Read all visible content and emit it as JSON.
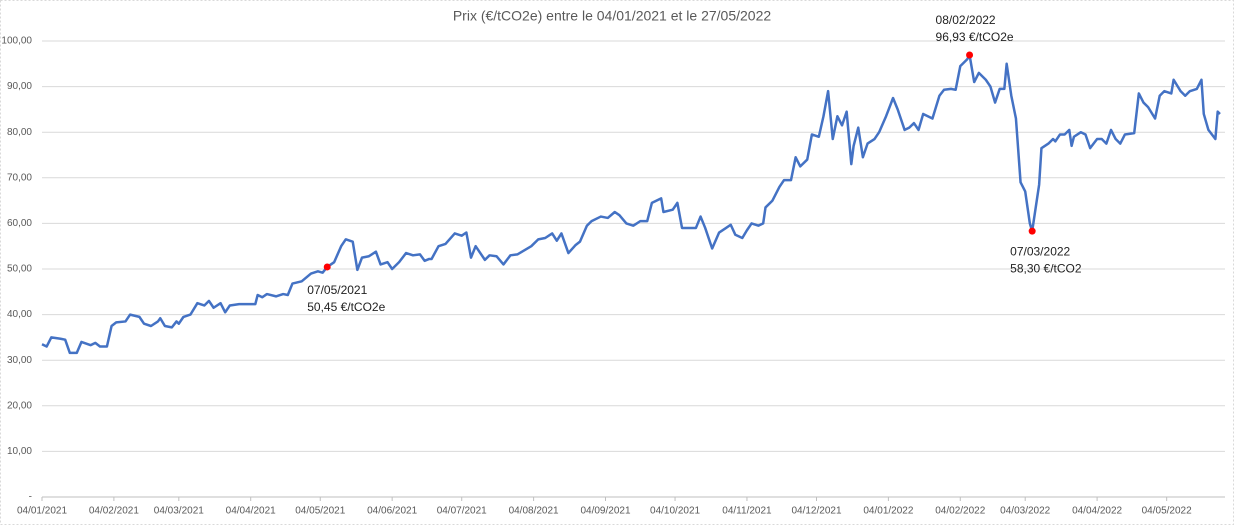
{
  "chart_data": {
    "type": "line",
    "title": "Prix (€/tCO2e) entre le 04/01/2021 et le 27/05/2022",
    "x": [
      "2021-01-04",
      "2021-01-06",
      "2021-01-08",
      "2021-01-12",
      "2021-01-14",
      "2021-01-16",
      "2021-01-19",
      "2021-01-21",
      "2021-01-25",
      "2021-01-27",
      "2021-01-29",
      "2021-02-01",
      "2021-02-03",
      "2021-02-05",
      "2021-02-09",
      "2021-02-11",
      "2021-02-15",
      "2021-02-17",
      "2021-02-20",
      "2021-02-23",
      "2021-02-24",
      "2021-02-26",
      "2021-03-01",
      "2021-03-03",
      "2021-03-04",
      "2021-03-06",
      "2021-03-09",
      "2021-03-12",
      "2021-03-15",
      "2021-03-17",
      "2021-03-19",
      "2021-03-22",
      "2021-03-24",
      "2021-03-26",
      "2021-03-30",
      "2021-04-06",
      "2021-04-07",
      "2021-04-09",
      "2021-04-11",
      "2021-04-15",
      "2021-04-18",
      "2021-04-20",
      "2021-04-22",
      "2021-04-26",
      "2021-04-30",
      "2021-05-03",
      "2021-05-05",
      "2021-05-07",
      "2021-05-10",
      "2021-05-13",
      "2021-05-15",
      "2021-05-18",
      "2021-05-20",
      "2021-05-22",
      "2021-05-25",
      "2021-05-28",
      "2021-05-30",
      "2021-06-02",
      "2021-06-04",
      "2021-06-07",
      "2021-06-10",
      "2021-06-13",
      "2021-06-16",
      "2021-06-18",
      "2021-06-20",
      "2021-06-21",
      "2021-06-24",
      "2021-06-27",
      "2021-07-01",
      "2021-07-04",
      "2021-07-06",
      "2021-07-08",
      "2021-07-10",
      "2021-07-14",
      "2021-07-16",
      "2021-07-19",
      "2021-07-22",
      "2021-07-25",
      "2021-07-28",
      "2021-07-30",
      "2021-08-03",
      "2021-08-06",
      "2021-08-09",
      "2021-08-12",
      "2021-08-14",
      "2021-08-16",
      "2021-08-19",
      "2021-08-22",
      "2021-08-24",
      "2021-08-27",
      "2021-08-29",
      "2021-09-02",
      "2021-09-05",
      "2021-09-08",
      "2021-09-10",
      "2021-09-13",
      "2021-09-16",
      "2021-09-19",
      "2021-09-22",
      "2021-09-24",
      "2021-09-28",
      "2021-09-29",
      "2021-10-03",
      "2021-10-05",
      "2021-10-07",
      "2021-10-11",
      "2021-10-13",
      "2021-10-15",
      "2021-10-17",
      "2021-10-20",
      "2021-10-23",
      "2021-10-26",
      "2021-10-28",
      "2021-10-30",
      "2021-11-02",
      "2021-11-04",
      "2021-11-06",
      "2021-11-09",
      "2021-11-11",
      "2021-11-12",
      "2021-11-15",
      "2021-11-18",
      "2021-11-20",
      "2021-11-23",
      "2021-11-25",
      "2021-11-27",
      "2021-11-30",
      "2021-12-02",
      "2021-12-05",
      "2021-12-07",
      "2021-12-09",
      "2021-12-11",
      "2021-12-13",
      "2021-12-15",
      "2021-12-17",
      "2021-12-19",
      "2021-12-20",
      "2021-12-22",
      "2021-12-24",
      "2021-12-26",
      "2021-12-29",
      "2021-12-31",
      "2022-01-03",
      "2022-01-06",
      "2022-01-08",
      "2022-01-11",
      "2022-01-13",
      "2022-01-15",
      "2022-01-17",
      "2022-01-19",
      "2022-01-23",
      "2022-01-26",
      "2022-01-28",
      "2022-01-31",
      "2022-02-02",
      "2022-02-04",
      "2022-02-07",
      "2022-02-08",
      "2022-02-10",
      "2022-02-12",
      "2022-02-15",
      "2022-02-17",
      "2022-02-19",
      "2022-02-21",
      "2022-02-23",
      "2022-02-24",
      "2022-02-26",
      "2022-02-28",
      "2022-03-02",
      "2022-03-04",
      "2022-03-06",
      "2022-03-07",
      "2022-03-10",
      "2022-03-11",
      "2022-03-14",
      "2022-03-16",
      "2022-03-17",
      "2022-03-19",
      "2022-03-21",
      "2022-03-23",
      "2022-03-24",
      "2022-03-25",
      "2022-03-28",
      "2022-03-30",
      "2022-04-01",
      "2022-04-04",
      "2022-04-06",
      "2022-04-08",
      "2022-04-10",
      "2022-04-12",
      "2022-04-14",
      "2022-04-16",
      "2022-04-20",
      "2022-04-22",
      "2022-04-24",
      "2022-04-26",
      "2022-04-29",
      "2022-05-01",
      "2022-05-03",
      "2022-05-06",
      "2022-05-07",
      "2022-05-10",
      "2022-05-12",
      "2022-05-14",
      "2022-05-17",
      "2022-05-19",
      "2022-05-20",
      "2022-05-22",
      "2022-05-25",
      "2022-05-26",
      "2022-05-27"
    ],
    "series": [
      {
        "color": "#4472c4",
        "values": [
          33.5,
          33,
          35,
          34.7,
          34.5,
          31.6,
          31.6,
          34,
          33.3,
          33.8,
          33,
          33,
          37.5,
          38.3,
          38.5,
          40,
          39.5,
          38,
          37.5,
          38.5,
          39.2,
          37.5,
          37.2,
          38.5,
          38,
          39.5,
          40,
          42.5,
          42,
          43,
          41.5,
          42.5,
          40.5,
          42,
          42.3,
          42.3,
          44.3,
          43.8,
          44.5,
          44,
          44.5,
          44.3,
          46.8,
          47.3,
          49,
          49.5,
          49.2,
          50.45,
          51.5,
          55,
          56.5,
          56,
          49.8,
          52.5,
          52.8,
          53.8,
          51,
          51.5,
          50,
          51.5,
          53.5,
          53,
          53.2,
          51.8,
          52.2,
          52.2,
          55,
          55.5,
          57.8,
          57.3,
          58,
          52.5,
          55,
          52,
          53,
          52.8,
          51,
          53,
          53.2,
          53.8,
          55,
          56.5,
          56.8,
          57.8,
          56.2,
          57.8,
          53.5,
          55.2,
          56,
          59.5,
          60.5,
          61.5,
          61.2,
          62.5,
          61.8,
          60,
          59.5,
          60.5,
          60.5,
          64.5,
          65.5,
          62.5,
          63,
          64.5,
          59,
          59,
          59,
          61.5,
          59,
          54.5,
          58,
          59,
          59.7,
          57.5,
          56.8,
          58.5,
          60,
          59.5,
          60,
          63.5,
          65,
          68,
          69.5,
          69.5,
          74.5,
          72.5,
          74,
          79.5,
          79,
          83.5,
          89,
          78.5,
          83.5,
          81.5,
          84.5,
          73,
          77,
          81,
          74.5,
          77.5,
          78.5,
          80,
          83.5,
          87.5,
          85,
          80.5,
          81,
          82,
          80.5,
          84,
          83,
          88,
          89.3,
          89.5,
          89.3,
          94.5,
          96,
          96.93,
          91,
          93,
          91.5,
          90,
          86.5,
          89.5,
          89.5,
          95,
          88,
          83,
          69,
          67,
          60,
          58.3,
          68.5,
          76.5,
          77.5,
          78.5,
          78,
          79.5,
          79.5,
          80.5,
          77,
          79,
          80,
          79.5,
          76.5,
          78.5,
          78.5,
          77.5,
          80.5,
          78.5,
          77.5,
          79.5,
          79.8,
          88.5,
          86.5,
          85.5,
          83,
          88,
          89,
          88.5,
          91.5,
          89,
          88,
          89,
          89.5,
          91.5,
          84,
          80.5,
          78.5,
          84.5,
          84
        ]
      }
    ],
    "xlim": [
      "2021-01-04",
      "2022-05-27"
    ],
    "xticks": [
      {
        "value": "2021-01-04",
        "label": "04/01/2021"
      },
      {
        "value": "2021-02-04",
        "label": "04/02/2021"
      },
      {
        "value": "2021-03-04",
        "label": "04/03/2021"
      },
      {
        "value": "2021-04-04",
        "label": "04/04/2021"
      },
      {
        "value": "2021-05-04",
        "label": "04/05/2021"
      },
      {
        "value": "2021-06-04",
        "label": "04/06/2021"
      },
      {
        "value": "2021-07-04",
        "label": "04/07/2021"
      },
      {
        "value": "2021-08-04",
        "label": "04/08/2021"
      },
      {
        "value": "2021-09-04",
        "label": "04/09/2021"
      },
      {
        "value": "2021-10-04",
        "label": "04/10/2021"
      },
      {
        "value": "2021-11-04",
        "label": "04/11/2021"
      },
      {
        "value": "2021-12-04",
        "label": "04/12/2021"
      },
      {
        "value": "2022-01-04",
        "label": "04/01/2022"
      },
      {
        "value": "2022-02-04",
        "label": "04/02/2022"
      },
      {
        "value": "2022-03-04",
        "label": "04/03/2022"
      },
      {
        "value": "2022-04-04",
        "label": "04/04/2022"
      },
      {
        "value": "2022-05-04",
        "label": "04/05/2022"
      }
    ],
    "ylim": [
      0,
      100
    ],
    "yticks": [
      {
        "value": 0,
        "label": "-"
      },
      {
        "value": 10,
        "label": "10,00"
      },
      {
        "value": 20,
        "label": "20,00"
      },
      {
        "value": 30,
        "label": "30,00"
      },
      {
        "value": 40,
        "label": "40,00"
      },
      {
        "value": 50,
        "label": "50,00"
      },
      {
        "value": 60,
        "label": "60,00"
      },
      {
        "value": 70,
        "label": "70,00"
      },
      {
        "value": 80,
        "label": "80,00"
      },
      {
        "value": 90,
        "label": "90,00"
      },
      {
        "value": 100,
        "label": "100,00"
      }
    ],
    "grid": true,
    "annotations": [
      {
        "x": "2021-05-07",
        "y": 50.45,
        "color": "#ff0000",
        "lines": [
          "07/05/2021",
          "50,45 €/tCO2e"
        ]
      },
      {
        "x": "2022-02-08",
        "y": 96.93,
        "color": "#ff0000",
        "lines": [
          "08/02/2022",
          "96,93 €/tCO2e"
        ]
      },
      {
        "x": "2022-03-07",
        "y": 58.3,
        "color": "#ff0000",
        "lines": [
          "07/03/2022",
          "58,30 €/tCO2"
        ]
      }
    ]
  }
}
